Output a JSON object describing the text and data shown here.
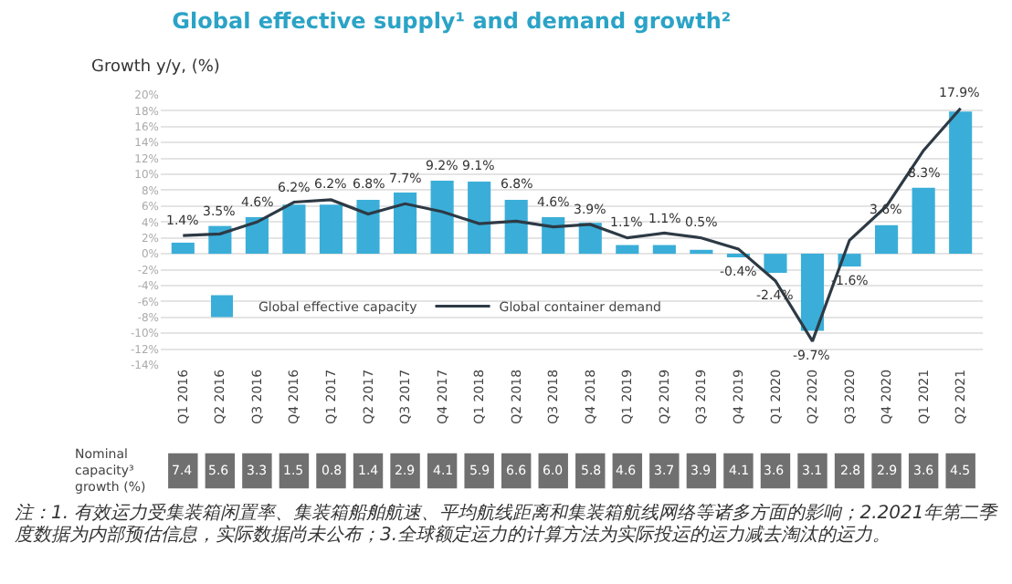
{
  "chart_data": [
    {
      "type": "bar",
      "title": "Global effective supply¹ and demand growth²",
      "ylabel": "Growth y/y, (%)",
      "categories": [
        "Q1 2016",
        "Q2 2016",
        "Q3 2016",
        "Q4 2016",
        "Q1 2017",
        "Q2 2017",
        "Q3 2017",
        "Q4 2017",
        "Q1 2018",
        "Q2 2018",
        "Q3 2018",
        "Q4 2018",
        "Q1 2019",
        "Q2 2019",
        "Q3 2019",
        "Q4 2019",
        "Q1 2020",
        "Q2 2020",
        "Q3 2020",
        "Q4 2020",
        "Q1 2021",
        "Q2 2021"
      ],
      "series": [
        {
          "name": "Global effective capacity",
          "type": "bar",
          "color": "#3aaed8",
          "values": [
            1.4,
            3.5,
            4.6,
            6.2,
            6.2,
            6.8,
            7.7,
            9.2,
            9.1,
            6.8,
            4.6,
            3.9,
            1.1,
            1.1,
            0.5,
            -0.4,
            -2.4,
            -9.7,
            -1.6,
            3.6,
            8.3,
            17.9
          ],
          "value_labels": [
            "1.4%",
            "3.5%",
            "4.6%",
            "6.2%",
            "6.2%",
            "6.8%",
            "7.7%",
            "9.2%",
            "9.1%",
            "6.8%",
            "4.6%",
            "3.9%",
            "1.1%",
            "1.1%",
            "0.5%",
            "-0.4%",
            "-2.4%",
            "-9.7%",
            "-1.6%",
            "3.6%",
            "8.3%",
            "17.9%"
          ]
        },
        {
          "name": "Global container demand",
          "type": "line",
          "color": "#2d3a45",
          "values": [
            2.3,
            2.5,
            4.0,
            6.5,
            6.8,
            5.0,
            6.3,
            5.3,
            3.8,
            4.1,
            3.4,
            3.7,
            2.0,
            2.6,
            2.0,
            0.6,
            -3.4,
            -11.0,
            1.7,
            6.0,
            13.0,
            18.3
          ]
        }
      ],
      "ylim": [
        -14,
        20
      ],
      "yticks": [
        {
          "value": -14,
          "label": "-14%"
        },
        {
          "value": -12,
          "label": "-12%"
        },
        {
          "value": -10,
          "label": "-10%"
        },
        {
          "value": -8,
          "label": "-8%"
        },
        {
          "value": -6,
          "label": "-6%"
        },
        {
          "value": -4,
          "label": "-4%"
        },
        {
          "value": -2,
          "label": "-2%"
        },
        {
          "value": 0,
          "label": "0%"
        },
        {
          "value": 2,
          "label": "2%"
        },
        {
          "value": 4,
          "label": "4%"
        },
        {
          "value": 6,
          "label": "6%"
        },
        {
          "value": 8,
          "label": "8%"
        },
        {
          "value": 10,
          "label": "10%"
        },
        {
          "value": 12,
          "label": "12%"
        },
        {
          "value": 14,
          "label": "14%"
        },
        {
          "value": 16,
          "label": "16%"
        },
        {
          "value": 18,
          "label": "18%"
        },
        {
          "value": 20,
          "label": "20%"
        }
      ],
      "grid": "y",
      "legend": "bottom left"
    },
    {
      "type": "other",
      "ylabel": "Nominal capacity³ growth (%)",
      "color": "#707070",
      "values": [
        7.4,
        5.6,
        3.3,
        1.5,
        0.8,
        1.4,
        2.9,
        4.1,
        5.9,
        6.6,
        6.0,
        5.8,
        4.6,
        3.7,
        3.9,
        4.1,
        3.6,
        3.1,
        2.8,
        2.9,
        3.6,
        4.5
      ],
      "value_labels": [
        "7.4",
        "5.6",
        "3.3",
        "1.5",
        "0.8",
        "1.4",
        "2.9",
        "4.1",
        "5.9",
        "6.6",
        "6.0",
        "5.8",
        "4.6",
        "3.7",
        "3.9",
        "4.1",
        "3.6",
        "3.1",
        "2.8",
        "2.9",
        "3.6",
        "4.5"
      ],
      "annotations": [
        "注：1. 有效运力受集装箱闲置率、集装箱船舶航速、平均航线距离和集装箱航线网络等诸多方面的影响；2.2021年第二季度数据为内部预估信息，实际数据尚未公布；3.全球额定运力的计算方法为实际投运的运力减去淘汰的运力。"
      ]
    }
  ]
}
